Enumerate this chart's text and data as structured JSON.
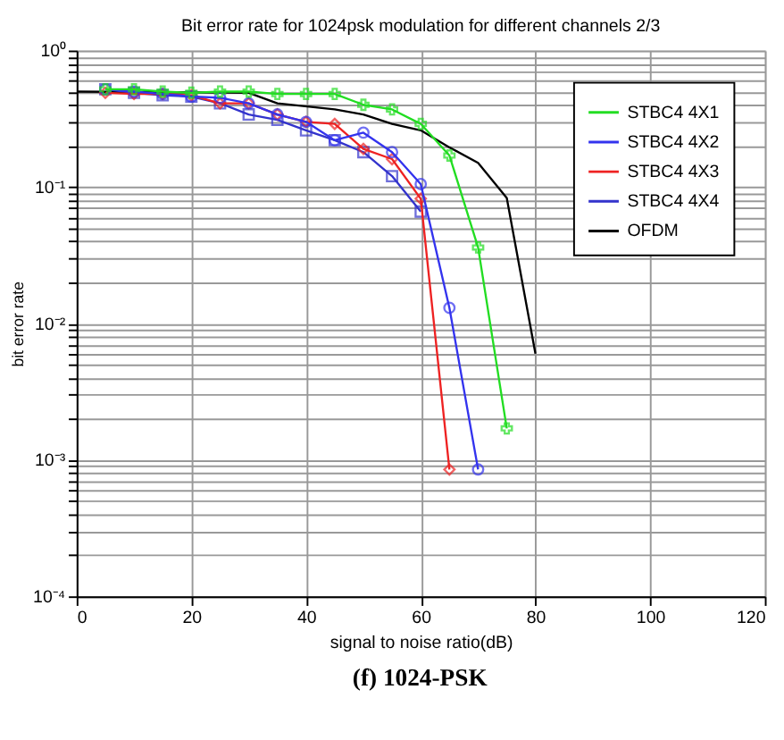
{
  "chart_data": {
    "type": "line",
    "title": "Bit error rate for 1024psk modulation for different channels 2/3",
    "xlabel": "signal to noise ratio(dB)",
    "ylabel": "bit error rate",
    "annotations": [
      "(f) 1024-PSK"
    ],
    "log": "y",
    "grid": true,
    "legend": "top right",
    "line_style": "solid",
    "xlim": [
      0,
      120
    ],
    "xticks": [
      0,
      20,
      40,
      60,
      80,
      100,
      120
    ],
    "ylim": [
      0.0001,
      1
    ],
    "yticks": [
      {
        "value": 0.0001,
        "label": "10⁻⁴"
      },
      {
        "value": 0.0002,
        "label": null
      },
      {
        "value": 0.0003,
        "label": null
      },
      {
        "value": 0.0004,
        "label": null
      },
      {
        "value": 0.0005,
        "label": null
      },
      {
        "value": 0.0006,
        "label": null
      },
      {
        "value": 0.0007,
        "label": null
      },
      {
        "value": 0.0008,
        "label": null
      },
      {
        "value": 0.0009,
        "label": null
      },
      {
        "value": 0.001,
        "label": "10⁻³"
      },
      {
        "value": 0.002,
        "label": null
      },
      {
        "value": 0.003,
        "label": null
      },
      {
        "value": 0.004,
        "label": null
      },
      {
        "value": 0.005,
        "label": null
      },
      {
        "value": 0.006,
        "label": null
      },
      {
        "value": 0.007,
        "label": null
      },
      {
        "value": 0.008,
        "label": null
      },
      {
        "value": 0.009,
        "label": null
      },
      {
        "value": 0.01,
        "label": "10⁻²"
      },
      {
        "value": 0.02,
        "label": null
      },
      {
        "value": 0.03,
        "label": null
      },
      {
        "value": 0.04,
        "label": null
      },
      {
        "value": 0.05,
        "label": null
      },
      {
        "value": 0.06,
        "label": null
      },
      {
        "value": 0.07,
        "label": null
      },
      {
        "value": 0.08,
        "label": null
      },
      {
        "value": 0.09,
        "label": null
      },
      {
        "value": 0.1,
        "label": "10⁻¹"
      },
      {
        "value": 0.2,
        "label": null
      },
      {
        "value": 0.3,
        "label": null
      },
      {
        "value": 0.4,
        "label": null
      },
      {
        "value": 0.5,
        "label": null
      },
      {
        "value": 0.6,
        "label": null
      },
      {
        "value": 0.7,
        "label": null
      },
      {
        "value": 0.8,
        "label": null
      },
      {
        "value": 0.9,
        "label": null
      },
      {
        "value": 1,
        "label": "10⁰"
      }
    ],
    "series": [
      {
        "name": "STBC4 4X1",
        "color": "#22dd22",
        "marker": "cross",
        "x": [
          5,
          10,
          15,
          20,
          25,
          30,
          35,
          40,
          45,
          50,
          55,
          60,
          65,
          70,
          75
        ],
        "values": [
          0.52,
          0.52,
          0.5,
          0.49,
          0.5,
          0.5,
          0.48,
          0.48,
          0.48,
          0.4,
          0.37,
          0.29,
          0.17,
          0.036,
          0.0017
        ]
      },
      {
        "name": "STBC4 4X2",
        "color": "#3333ee",
        "marker": "circle",
        "x": [
          5,
          10,
          15,
          20,
          25,
          30,
          35,
          40,
          45,
          50,
          55,
          60,
          65,
          70
        ],
        "values": [
          0.52,
          0.5,
          0.48,
          0.46,
          0.45,
          0.41,
          0.34,
          0.3,
          0.22,
          0.25,
          0.18,
          0.105,
          0.013,
          0.00085
        ]
      },
      {
        "name": "STBC4 4X3",
        "color": "#ee2222",
        "marker": "diamond",
        "x": [
          5,
          10,
          15,
          20,
          25,
          30,
          35,
          40,
          45,
          50,
          55,
          60,
          65
        ],
        "values": [
          0.49,
          0.48,
          0.48,
          0.47,
          0.41,
          0.41,
          0.34,
          0.3,
          0.29,
          0.19,
          0.16,
          0.082,
          0.00085
        ]
      },
      {
        "name": "STBC4 4X4",
        "color": "#3333cc",
        "marker": "square",
        "x": [
          5,
          10,
          15,
          20,
          25,
          30,
          35,
          40,
          45,
          50,
          55,
          60
        ],
        "values": [
          0.52,
          0.49,
          0.47,
          0.46,
          0.41,
          0.34,
          0.31,
          0.26,
          0.22,
          0.18,
          0.12,
          0.066
        ]
      },
      {
        "name": "OFDM",
        "color": "#000000",
        "marker": "none",
        "x": [
          0,
          30,
          35,
          45,
          50,
          55,
          60,
          65,
          70,
          75,
          80
        ],
        "values": [
          0.5,
          0.49,
          0.41,
          0.37,
          0.34,
          0.29,
          0.26,
          0.195,
          0.15,
          0.083,
          0.006
        ]
      }
    ]
  }
}
